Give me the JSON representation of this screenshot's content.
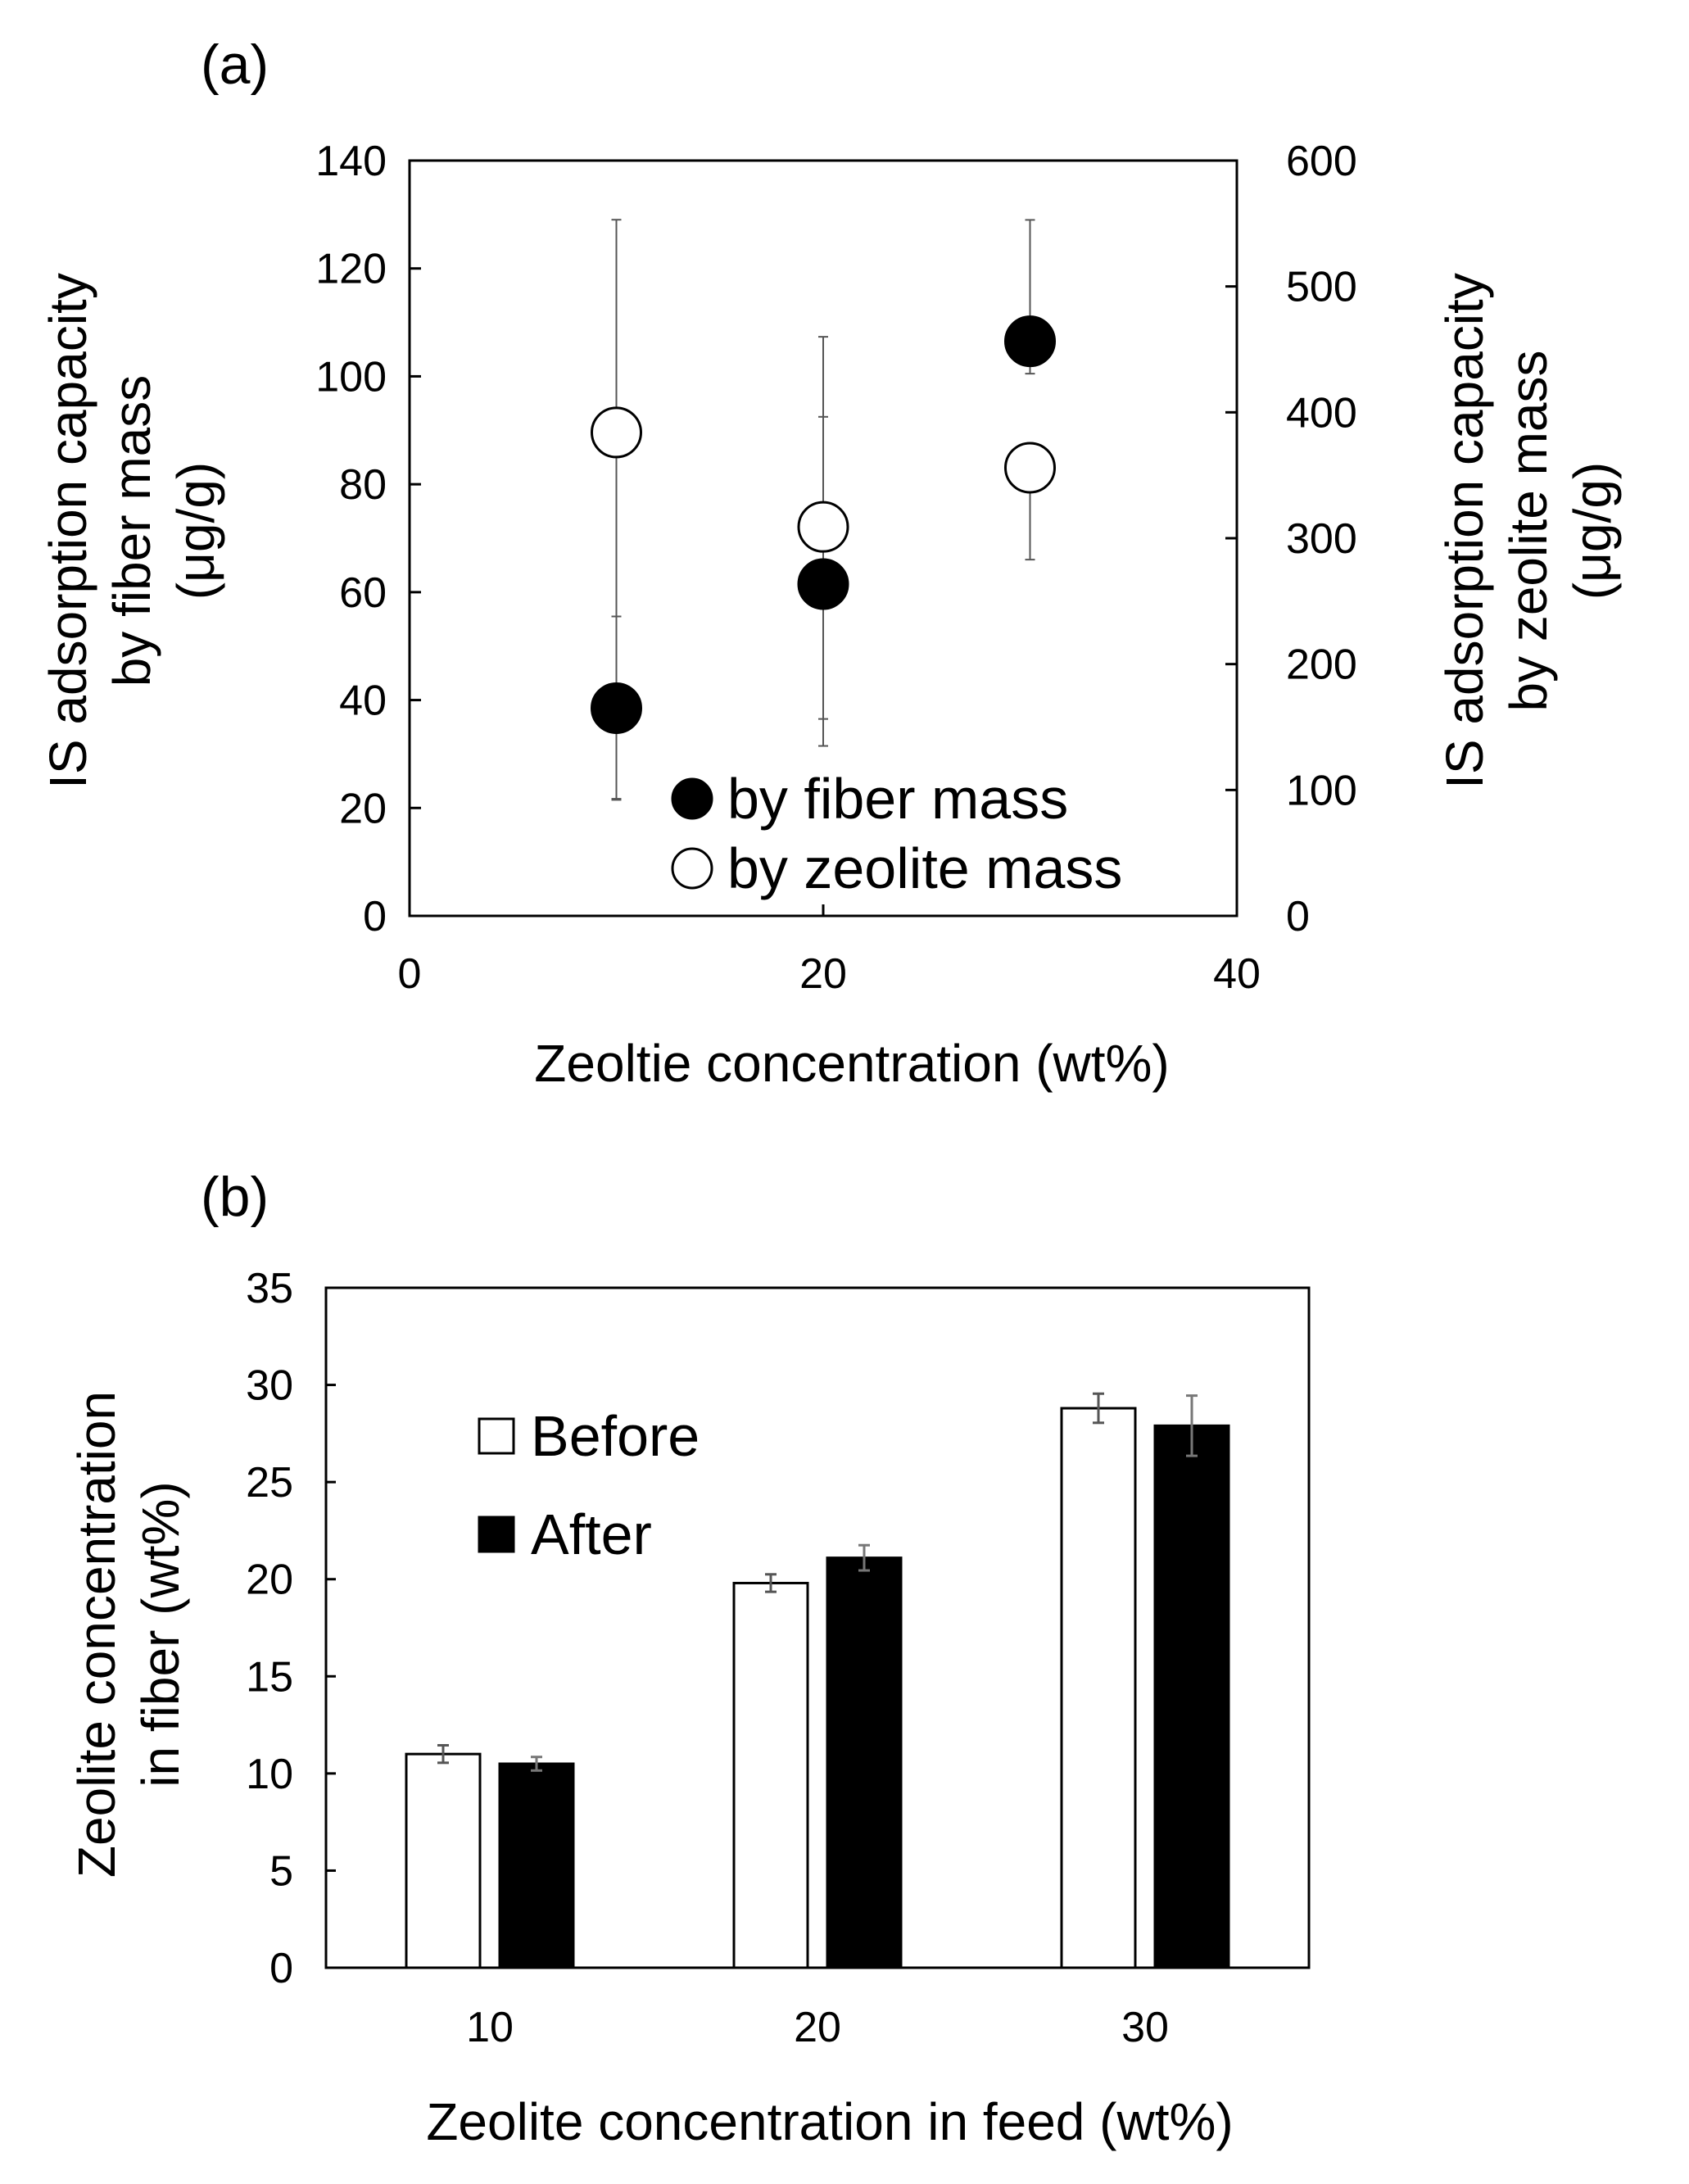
{
  "chart_data": [
    {
      "panel": "(a)",
      "type": "scatter",
      "xlabel": "Zeoltie concentration (wt%)",
      "ylabel_left": [
        "IS adsorption capacity",
        "by fiber mass",
        "(μg/g)"
      ],
      "ylabel_right": [
        "IS adsorption capacity",
        "by zeolite mass",
        "(μg/g)"
      ],
      "xlim": [
        0,
        40
      ],
      "xticks": [
        "0",
        "20",
        "40"
      ],
      "ylim_left": [
        0,
        140
      ],
      "yticks_left": [
        "0",
        "20",
        "40",
        "60",
        "80",
        "100",
        "120",
        "140"
      ],
      "ylim_right": [
        0,
        600
      ],
      "yticks_right": [
        "0",
        "100",
        "200",
        "300",
        "400",
        "500",
        "600"
      ],
      "legend_position": "bottom-right",
      "series": [
        {
          "name": "by fiber mass",
          "marker": "filled-circle",
          "axis": "left",
          "x": [
            10,
            20,
            30
          ],
          "y": [
            38.5,
            61.5,
            106.5
          ],
          "err_low": [
            21.5,
            36.5,
            100.5
          ],
          "err_high": [
            55.5,
            92.5,
            129
          ]
        },
        {
          "name": "by zeolite mass",
          "marker": "open-circle",
          "axis": "right",
          "x": [
            10,
            20,
            30
          ],
          "y": [
            384,
            309,
            356
          ],
          "err_low": [
            93,
            135,
            283
          ],
          "err_high": [
            553,
            460,
            365
          ]
        }
      ]
    },
    {
      "panel": "(b)",
      "type": "bar",
      "xlabel": "Zeolite concentration in feed (wt%)",
      "ylabel": [
        "Zeolite concentration",
        "in fiber (wt%)"
      ],
      "categories": [
        "10",
        "20",
        "30"
      ],
      "ylim": [
        0,
        35
      ],
      "yticks": [
        "0",
        "5",
        "10",
        "15",
        "20",
        "25",
        "30",
        "35"
      ],
      "legend_position": "top-left",
      "series": [
        {
          "name": "Before",
          "fill": "#ffffff",
          "values": [
            11.0,
            19.8,
            28.8
          ],
          "errors": [
            0.45,
            0.45,
            0.75
          ]
        },
        {
          "name": "After",
          "fill": "#000000",
          "values": [
            10.5,
            21.1,
            27.9
          ],
          "errors": [
            0.35,
            0.65,
            1.55
          ]
        }
      ]
    }
  ]
}
